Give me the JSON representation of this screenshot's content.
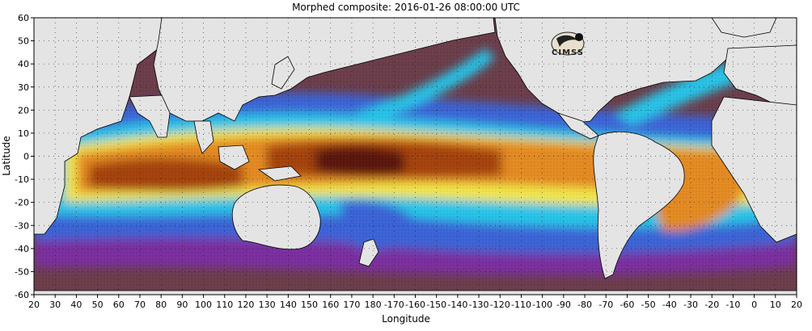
{
  "title": "Morphed composite: 2016-01-26 08:00:00 UTC",
  "logo_text": "CIMSS",
  "colors": {
    "land": "#e4e4e4",
    "dry": "#6b3d4a",
    "low": "#7a2f9f",
    "mid_low": "#3a63d6",
    "mid": "#27c4e8",
    "mid_high": "#6ee06a",
    "high_yellow": "#f2e64a",
    "high": "#e38a22",
    "very_high": "#a4420e",
    "extreme": "#5a160b"
  },
  "chart_data": {
    "type": "heatmap",
    "title": "Morphed composite: 2016-01-26 08:00:00 UTC",
    "xlabel": "Longitude",
    "ylabel": "Latitude",
    "xlim": [
      20,
      380
    ],
    "ylim": [
      -60,
      60
    ],
    "x_ticks": [
      "20",
      "30",
      "40",
      "50",
      "60",
      "70",
      "80",
      "90",
      "100",
      "110",
      "120",
      "130",
      "140",
      "150",
      "160",
      "170",
      "180",
      "-170",
      "-160",
      "-150",
      "-140",
      "-130",
      "-120",
      "-110",
      "-100",
      "-90",
      "-80",
      "-70",
      "-60",
      "-50",
      "-40",
      "-30",
      "-20",
      "-10",
      "0",
      "10",
      "20"
    ],
    "y_ticks": [
      "60",
      "50",
      "40",
      "30",
      "20",
      "10",
      "0",
      "-10",
      "-20",
      "-30",
      "-40",
      "-50",
      "-60"
    ],
    "grid": "dotted"
  }
}
